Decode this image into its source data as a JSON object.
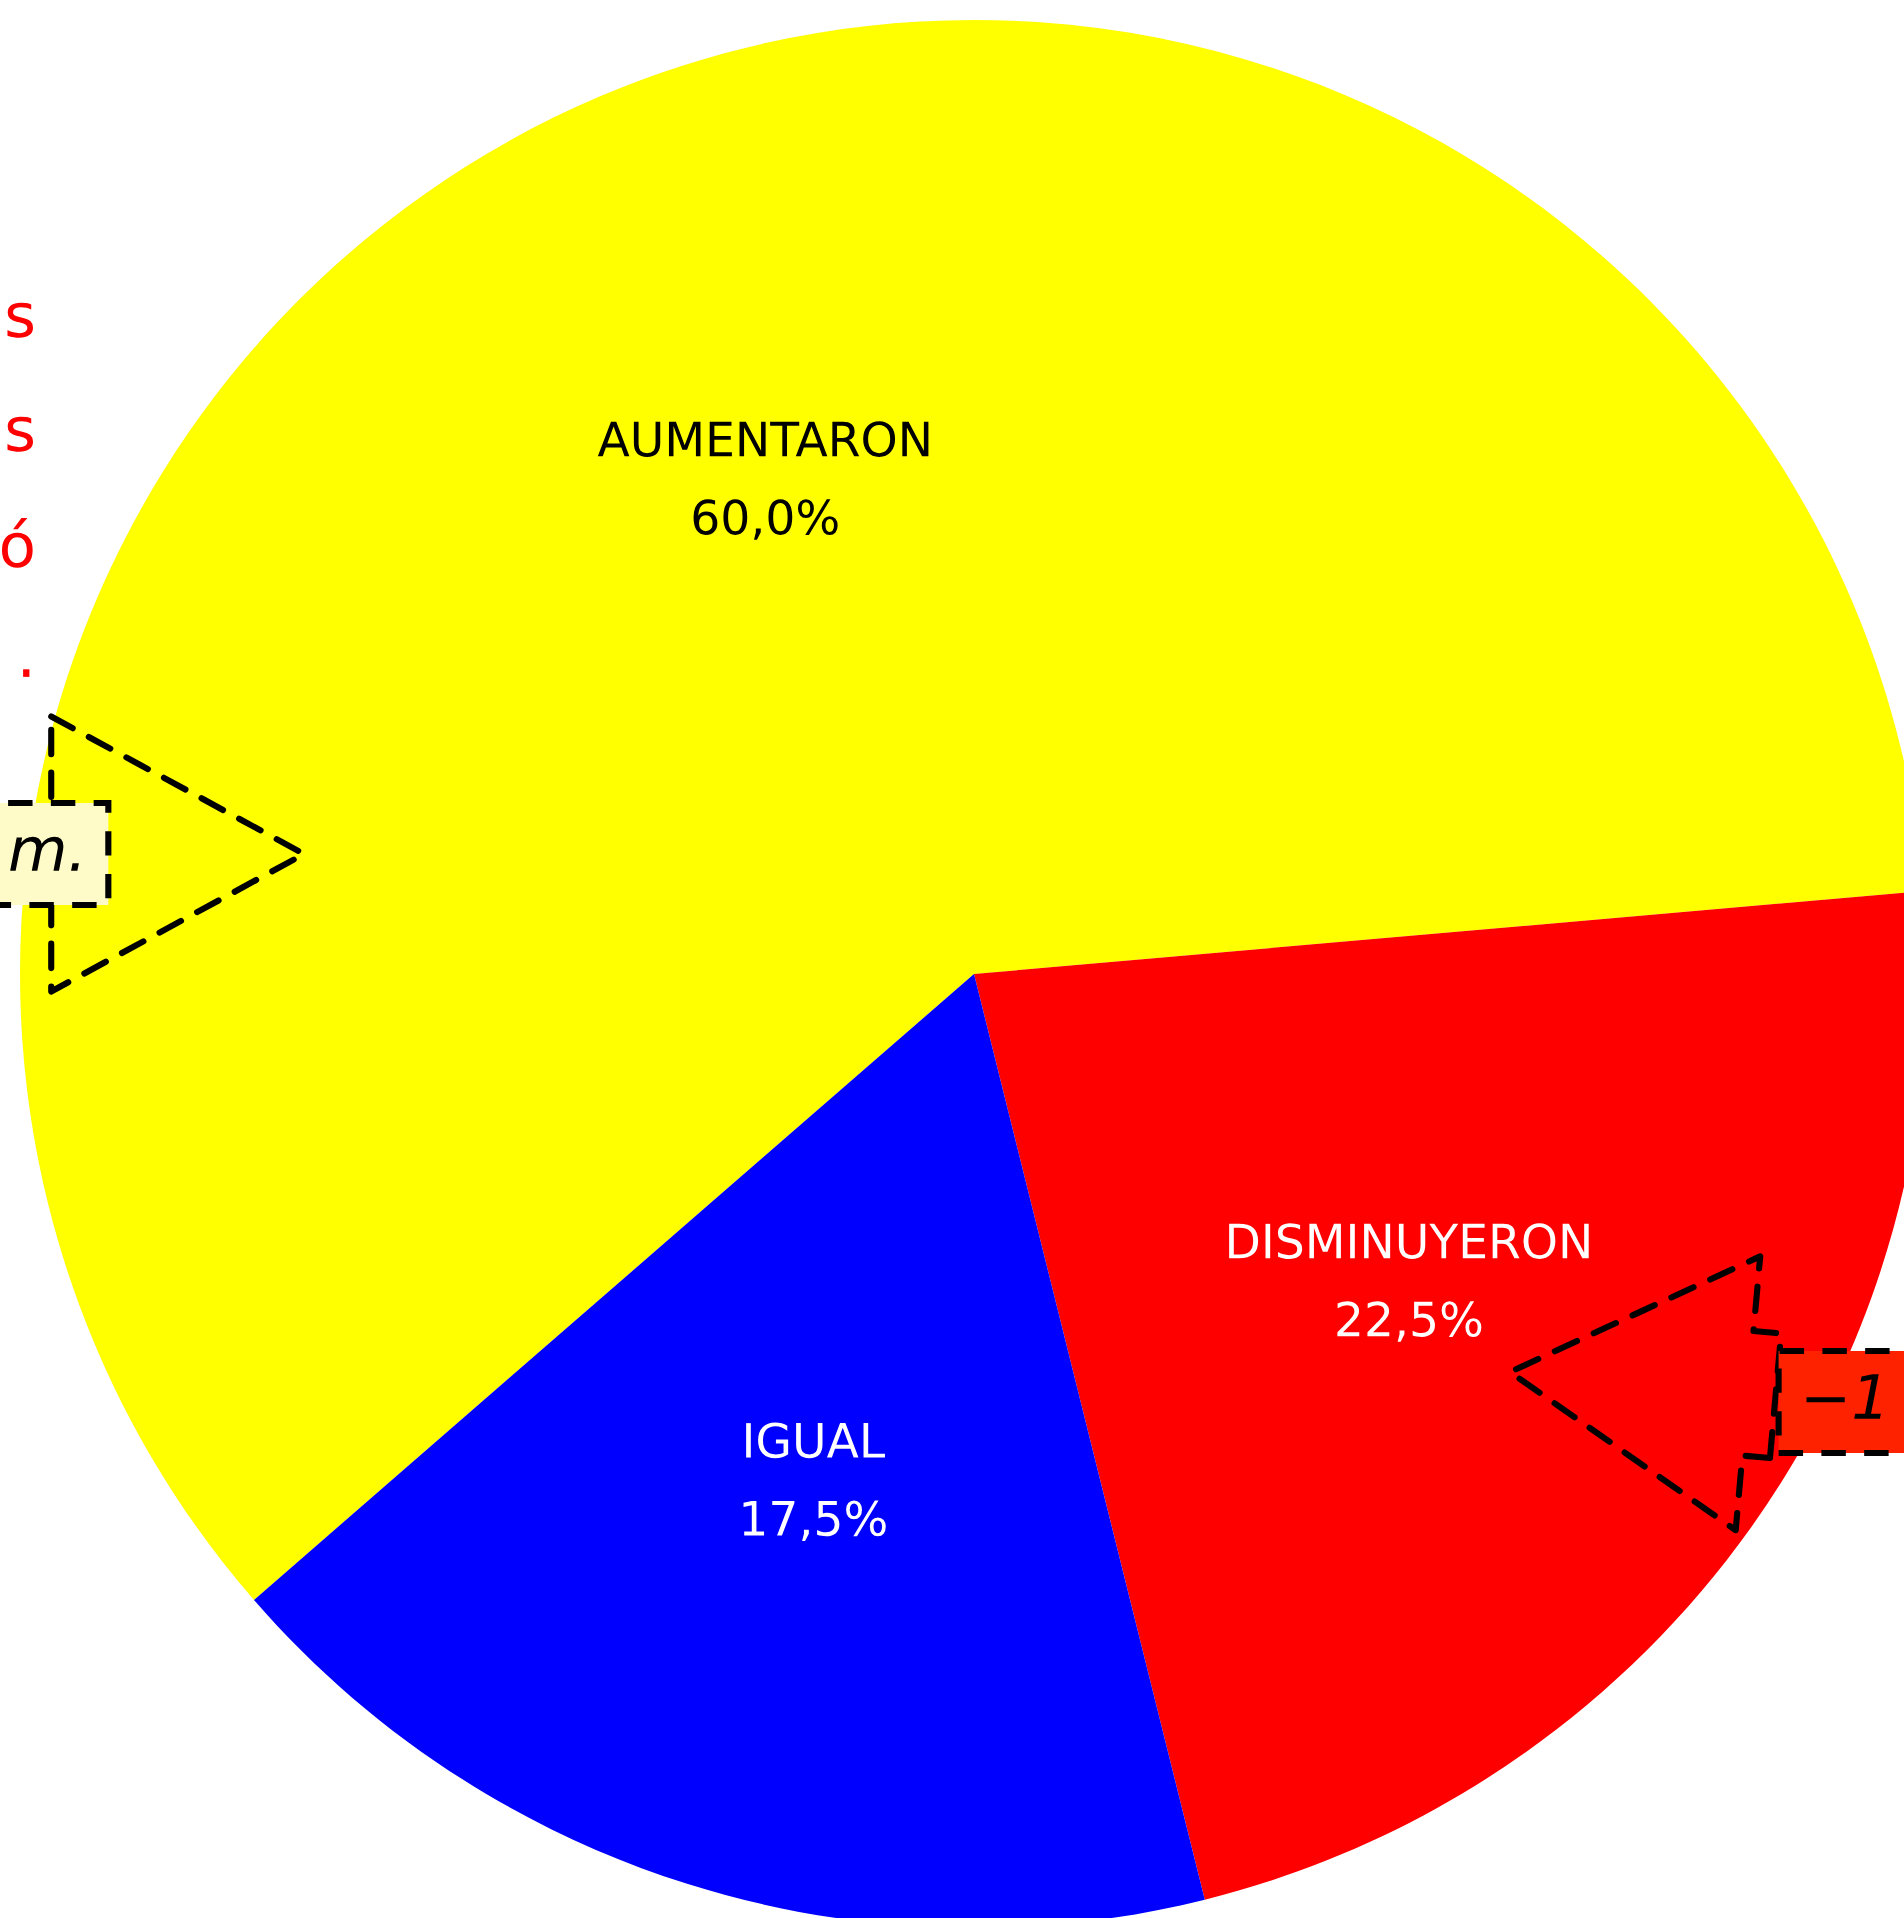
{
  "chart_data": {
    "type": "pie",
    "categories": [
      "AUMENTARON",
      "DISMINUYERON",
      "IGUAL"
    ],
    "values": [
      60.0,
      22.5,
      17.5
    ],
    "value_labels": [
      "60,0%",
      "22,5%",
      "17,5%"
    ],
    "colors": [
      "#ffff00",
      "#ff0000",
      "#0000ff"
    ],
    "annotations": [
      "s",
      "s",
      "ó",
      ".",
      "m.",
      "−1"
    ]
  }
}
